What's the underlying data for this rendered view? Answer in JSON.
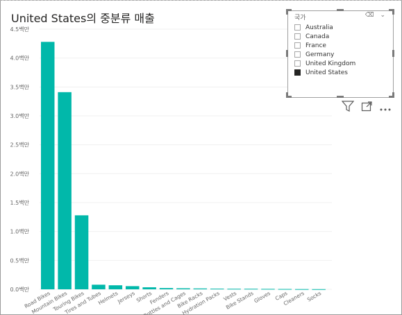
{
  "visual": {
    "title": "United States의 중분류 매출"
  },
  "slicer": {
    "header": "국가",
    "header_icons": "⌫ ⌄",
    "options": [
      {
        "label": "Australia",
        "checked": false
      },
      {
        "label": "Canada",
        "checked": false
      },
      {
        "label": "France",
        "checked": false
      },
      {
        "label": "Germany",
        "checked": false
      },
      {
        "label": "United Kingdom",
        "checked": false
      },
      {
        "label": "United States",
        "checked": true
      }
    ]
  },
  "toolbar_icons": [
    "filter-icon",
    "focus-mode-icon",
    "more-options-icon"
  ],
  "colors": {
    "bar": "#01b8aa",
    "grid": "#f0f0f0",
    "axis_text": "#666666"
  },
  "chart_data": {
    "type": "bar",
    "title": "United States의 중분류 매출",
    "categories": [
      "Road Bikes",
      "Mountain Bikes",
      "Touring Bikes",
      "Tires and Tubes",
      "Helmets",
      "Jerseys",
      "Shorts",
      "Fenders",
      "Bottles and Cages",
      "Bike Racks",
      "Hydration Packs",
      "Vests",
      "Bike Stands",
      "Gloves",
      "Caps",
      "Cleaners",
      "Socks"
    ],
    "values": [
      4.28,
      3.41,
      1.28,
      0.08,
      0.07,
      0.055,
      0.035,
      0.022,
      0.018,
      0.015,
      0.012,
      0.01,
      0.01,
      0.008,
      0.006,
      0.004,
      0.003
    ],
    "value_unit": "백만",
    "y_ticks": [
      "0.0백만",
      "0.5백만",
      "1.0백만",
      "1.5백만",
      "2.0백만",
      "2.5백만",
      "3.0백만",
      "3.5백만",
      "4.0백만",
      "4.5백만"
    ],
    "ylim": [
      0,
      4.5
    ],
    "grid": true
  }
}
